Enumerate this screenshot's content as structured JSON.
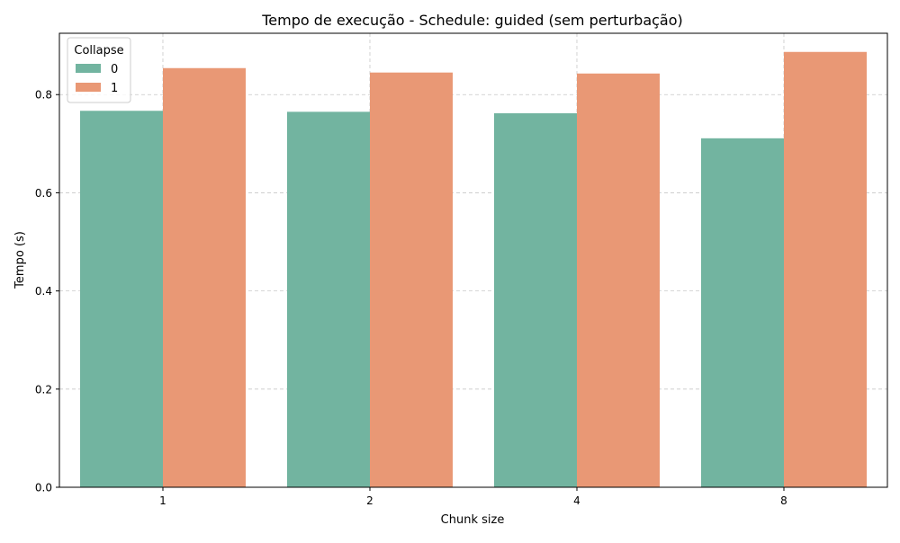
{
  "chart_data": {
    "type": "bar",
    "title": "Tempo de execução - Schedule: guided (sem perturbação)",
    "xlabel": "Chunk size",
    "ylabel": "Tempo (s)",
    "categories": [
      "1",
      "2",
      "4",
      "8"
    ],
    "series": [
      {
        "name": "0",
        "color": "#72b4a0",
        "values": [
          0.767,
          0.765,
          0.762,
          0.711
        ]
      },
      {
        "name": "1",
        "color": "#e99875",
        "values": [
          0.854,
          0.845,
          0.843,
          0.887
        ]
      }
    ],
    "ylim": [
      0,
      0.925
    ],
    "yticks": [
      0.0,
      0.2,
      0.4,
      0.6,
      0.8
    ],
    "ytick_labels": [
      "0.0",
      "0.2",
      "0.4",
      "0.6",
      "0.8"
    ],
    "grid": true,
    "legend": {
      "title": "Collapse",
      "placement": "top-left",
      "entries": [
        "0",
        "1"
      ]
    }
  }
}
